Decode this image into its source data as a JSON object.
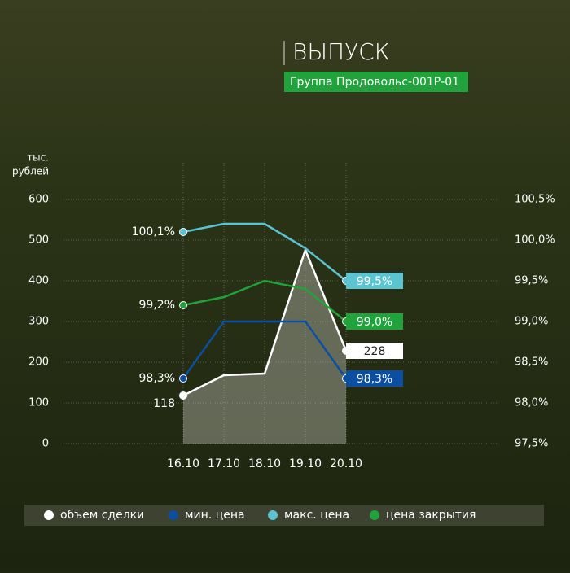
{
  "chart_data": {
    "type": "line",
    "title": "ВЫПУСК",
    "subtitle": "Группа Продовольс-001Р-01",
    "ylabel": [
      "тыс.",
      "рублей"
    ],
    "categories": [
      "16.10",
      "17.10",
      "18.10",
      "19.10",
      "20.10"
    ],
    "ylim": [
      0,
      600
    ],
    "yticks": [
      0,
      100,
      200,
      300,
      400,
      500,
      600
    ],
    "y2lim": [
      97.5,
      100.5
    ],
    "y2ticks": [
      {
        "value": 97.5,
        "label": "97,5%"
      },
      {
        "value": 98.0,
        "label": "98,0%"
      },
      {
        "value": 98.5,
        "label": "98,5%"
      },
      {
        "value": 99.0,
        "label": "99,0%"
      },
      {
        "value": 99.5,
        "label": "99,5%"
      },
      {
        "value": 100.0,
        "label": "100,0%"
      },
      {
        "value": 100.5,
        "label": "100,5%"
      }
    ],
    "grid": true,
    "series": [
      {
        "name": "объем сделки",
        "color": "#ffffff",
        "area": true,
        "values": [
          118,
          168,
          172,
          476,
          228
        ]
      },
      {
        "name": "мин. цена",
        "color": "#0b4fa3",
        "axis": "y2",
        "values": [
          98.3,
          99.0,
          99.0,
          99.0,
          98.3
        ],
        "value_labels": [
          "98,3%",
          null,
          null,
          null,
          "98,3%"
        ]
      },
      {
        "name": "макс. цена",
        "color": "#5cc3d0",
        "axis": "y2",
        "values": [
          100.1,
          100.2,
          100.2,
          99.9,
          99.5
        ],
        "value_labels": [
          "100,1%",
          null,
          null,
          null,
          "99,5%"
        ]
      },
      {
        "name": "цена закрытия",
        "color": "#20a33b",
        "axis": "y2",
        "values": [
          99.2,
          99.3,
          99.5,
          99.4,
          99.0
        ],
        "value_labels": [
          "99,2%",
          null,
          null,
          null,
          "99,0%"
        ]
      }
    ]
  }
}
